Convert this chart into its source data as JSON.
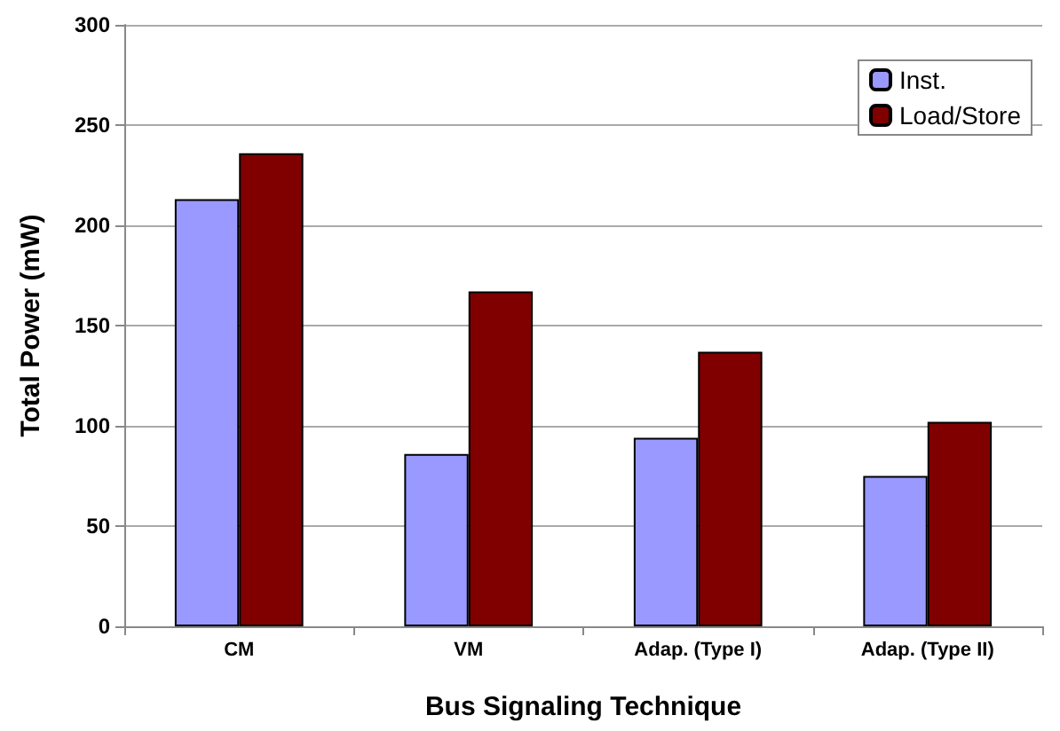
{
  "chart_data": {
    "type": "bar",
    "xlabel": "Bus Signaling Technique",
    "ylabel": "Total Power (mW)",
    "categories": [
      "CM",
      "VM",
      "Adap. (Type I)",
      "Adap. (Type II)"
    ],
    "series": [
      {
        "name": "Inst.",
        "color": "#9999ff",
        "values": [
          213,
          86,
          94,
          75
        ]
      },
      {
        "name": "Load/Store",
        "color": "#800000",
        "values": [
          236,
          167,
          137,
          102
        ]
      }
    ],
    "ylim": [
      0,
      300
    ],
    "yticks": [
      0,
      50,
      100,
      150,
      200,
      250,
      300
    ],
    "grid": "y",
    "legend": "top right"
  }
}
